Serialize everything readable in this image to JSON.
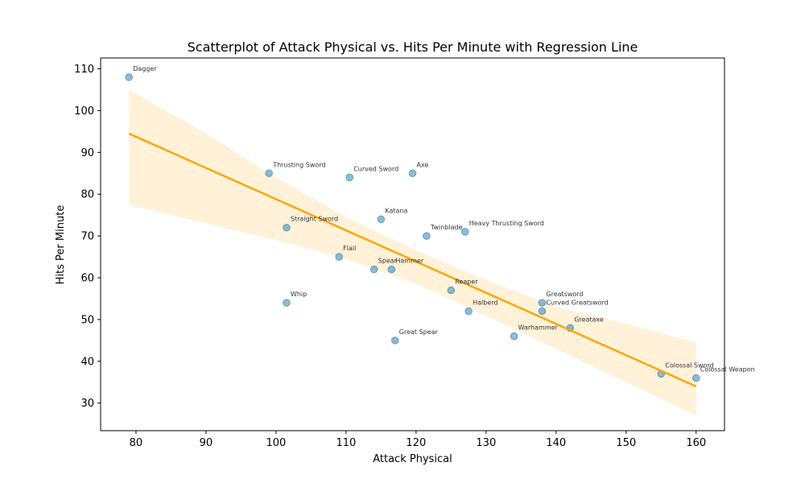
{
  "chart_data": {
    "type": "scatter",
    "title": "Scatterplot of Attack Physical vs. Hits Per Minute with Regression Line",
    "xlabel": "Attack Physical",
    "ylabel": "Hits Per Minute",
    "xlim": [
      74.95,
      164.05
    ],
    "ylim": [
      23.4,
      112.6
    ],
    "xticks": [
      "80",
      "90",
      "100",
      "110",
      "120",
      "130",
      "140",
      "150",
      "160"
    ],
    "yticks": [
      "30",
      "40",
      "50",
      "60",
      "70",
      "80",
      "90",
      "100",
      "110"
    ],
    "grid": false,
    "colors": {
      "points": "#1f77b4",
      "regression_line": "#ffa500",
      "confidence_band": "#ffa500"
    },
    "points": [
      {
        "label": "Dagger",
        "x": 79,
        "y": 108
      },
      {
        "label": "Thrusting Sword",
        "x": 99,
        "y": 85
      },
      {
        "label": "Curved Sword",
        "x": 110.5,
        "y": 84
      },
      {
        "label": "Axe",
        "x": 119.5,
        "y": 85
      },
      {
        "label": "Katana",
        "x": 115,
        "y": 74
      },
      {
        "label": "Straight Sword",
        "x": 101.5,
        "y": 72
      },
      {
        "label": "Twinblade",
        "x": 121.5,
        "y": 70
      },
      {
        "label": "Heavy Thrusting Sword",
        "x": 127,
        "y": 71
      },
      {
        "label": "Flail",
        "x": 109,
        "y": 65
      },
      {
        "label": "Spear",
        "x": 114,
        "y": 62
      },
      {
        "label": "Hammer",
        "x": 116.5,
        "y": 62
      },
      {
        "label": "Reaper",
        "x": 125,
        "y": 57
      },
      {
        "label": "Whip",
        "x": 101.5,
        "y": 54
      },
      {
        "label": "Greatsword",
        "x": 138,
        "y": 54
      },
      {
        "label": "Curved Greatsword",
        "x": 138,
        "y": 52
      },
      {
        "label": "Halberd",
        "x": 127.5,
        "y": 52
      },
      {
        "label": "Greataxe",
        "x": 142,
        "y": 48
      },
      {
        "label": "Warhammer",
        "x": 134,
        "y": 46
      },
      {
        "label": "Great Spear",
        "x": 117,
        "y": 45
      },
      {
        "label": "Colossal Sword",
        "x": 155,
        "y": 37
      },
      {
        "label": "Colossal Weapon",
        "x": 160,
        "y": 36
      }
    ],
    "regression_line": {
      "x": [
        79,
        160
      ],
      "y": [
        94.5,
        34
      ]
    },
    "confidence_band": {
      "x": [
        79,
        90,
        100,
        110,
        120,
        130,
        140,
        150,
        160
      ],
      "upper": [
        105,
        94.5,
        84,
        74.5,
        66.5,
        59.5,
        53,
        49,
        44.5
      ],
      "lower": [
        77.5,
        73,
        69,
        64.5,
        58.5,
        51,
        43,
        35,
        27
      ]
    }
  }
}
